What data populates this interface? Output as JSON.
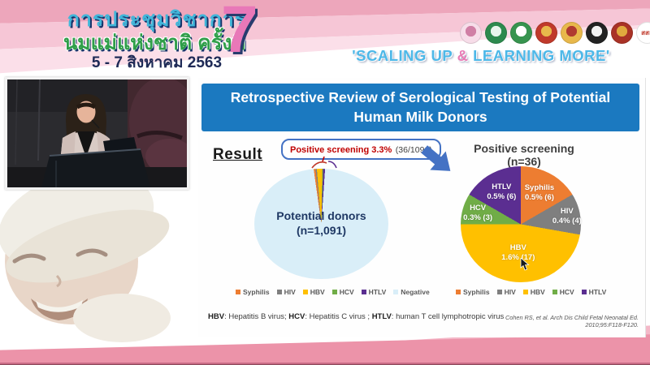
{
  "banner": {
    "title_line1": "การประชุมวิชาการ",
    "title_line2": "นมแม่แห่งชาติ ครั้งที่",
    "date_line": "5 - 7 สิงหาคม 2563",
    "edition_number": "7",
    "tagline_part1": "'SCALING UP ",
    "tagline_amp": "&",
    "tagline_part2": " LEARNING MORE'",
    "logos": [
      {
        "name": "mother-child-foundation-logo",
        "c1": "#f7dde9",
        "c2": "#d07fa5",
        "text": ""
      },
      {
        "name": "green-medical-seal-1-logo",
        "c1": "#2d8a4e",
        "c2": "#e8f5ec",
        "text": ""
      },
      {
        "name": "green-medical-seal-2-logo",
        "c1": "#37944f",
        "c2": "#ffffff",
        "text": ""
      },
      {
        "name": "royal-temple-emblem-logo",
        "c1": "#c0392b",
        "c2": "#e8b84b",
        "text": ""
      },
      {
        "name": "royal-crest-logo",
        "c1": "#e8b84b",
        "c2": "#b03a30",
        "text": ""
      },
      {
        "name": "university-seal-logo",
        "c1": "#222222",
        "c2": "#f2f2f2",
        "text": ""
      },
      {
        "name": "red-gold-seal-logo",
        "c1": "#a93226",
        "c2": "#e0a93e",
        "text": ""
      },
      {
        "name": "thaihealth-logo",
        "c1": "#ffffff",
        "c2": "#ffffff",
        "text": "สสส"
      }
    ]
  },
  "slide": {
    "title": "Retrospective Review of Serological Testing of Potential Human Milk Donors",
    "result_label": "Result",
    "callout": {
      "highlight": "Positive screening 3.3%",
      "detail": "(36/1091)"
    },
    "footnote": {
      "abbr1": "HBV",
      "def1": ": Hepatitis B virus; ",
      "abbr2": "HCV",
      "def2": ": Hepatitis C virus ; ",
      "abbr3": "HTLV",
      "def3": ": human T cell lymphotropic virus"
    },
    "citation": "Cohen RS, et al. Arch Dis Child Fetal Neonatal Ed. 2010;95:F118-F120."
  },
  "chart_data": [
    {
      "type": "pie",
      "name": "potential-donors-pie",
      "center_label_line1": "Potential donors",
      "center_label_line2": "(n=1,091)",
      "total": 1091,
      "start_angle_deg": -8,
      "legend_position": "bottom",
      "slices": [
        {
          "label": "Syphilis",
          "count": 6,
          "color": "#ED7D31"
        },
        {
          "label": "HIV",
          "count": 4,
          "color": "#7F7F7F"
        },
        {
          "label": "HBV",
          "count": 17,
          "color": "#FFC000"
        },
        {
          "label": "HCV",
          "count": 3,
          "color": "#70AD47"
        },
        {
          "label": "HTLV",
          "count": 6,
          "color": "#5B2E91"
        },
        {
          "label": "Negative",
          "count": 1055,
          "color": "#D9EEF8"
        }
      ]
    },
    {
      "type": "pie",
      "name": "positive-screening-pie",
      "title": "Positive screening (n=36)",
      "total": 36,
      "start_angle_deg": 0,
      "legend_position": "bottom",
      "slices": [
        {
          "label": "Syphilis",
          "count": 6,
          "pct_label": "0.5%",
          "color": "#ED7D31"
        },
        {
          "label": "HIV",
          "count": 4,
          "pct_label": "0.4%",
          "color": "#7F7F7F"
        },
        {
          "label": "HBV",
          "count": 17,
          "pct_label": "1.6%",
          "color": "#FFC000"
        },
        {
          "label": "HCV",
          "count": 3,
          "pct_label": "0.3%",
          "color": "#70AD47"
        },
        {
          "label": "HTLV",
          "count": 6,
          "pct_label": "0.5%",
          "color": "#5B2E91"
        }
      ]
    }
  ]
}
